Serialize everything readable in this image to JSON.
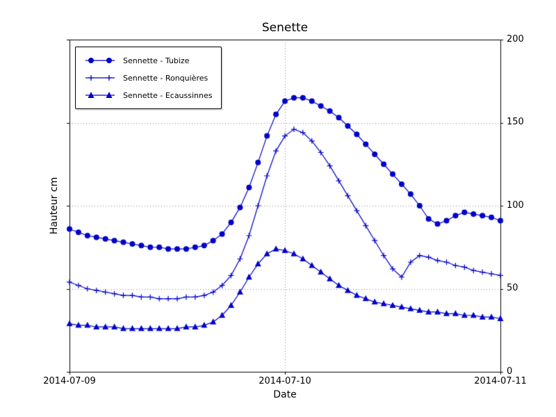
{
  "chart_data": {
    "type": "line",
    "title": "Senette",
    "xlabel": "Date",
    "ylabel": "Hauteur cm",
    "ylim": [
      0,
      200
    ],
    "ytick_labels": [
      "0",
      "50",
      "100",
      "150",
      "200"
    ],
    "xtick_labels": [
      "2014-07-09",
      "2014-07-10",
      "2014-07-11"
    ],
    "x_start": "2014-07-09 00:00",
    "x_step_hours": 1,
    "grid": "dotted",
    "grid_color": "#888888",
    "line_color": "#0000cc",
    "legend_position": "upper-left",
    "series": [
      {
        "name": "Sennette - Tubize",
        "marker": "circle",
        "values": [
          86,
          84,
          82,
          81,
          80,
          79,
          78,
          77,
          76,
          75,
          75,
          74,
          74,
          74,
          75,
          76,
          79,
          83,
          90,
          99,
          111,
          126,
          142,
          155,
          163,
          165,
          165,
          163,
          160,
          157,
          153,
          148,
          143,
          137,
          131,
          125,
          119,
          113,
          107,
          100,
          92,
          89,
          91,
          94,
          96,
          95,
          94,
          93,
          91
        ]
      },
      {
        "name": "Sennette - Ronquières",
        "marker": "plus",
        "values": [
          54,
          52,
          50,
          49,
          48,
          47,
          46,
          46,
          45,
          45,
          44,
          44,
          44,
          45,
          45,
          46,
          48,
          52,
          58,
          68,
          82,
          100,
          118,
          133,
          142,
          146,
          144,
          139,
          132,
          124,
          115,
          106,
          97,
          88,
          79,
          70,
          62,
          57,
          66,
          70,
          69,
          67,
          66,
          64,
          63,
          61,
          60,
          59,
          58
        ]
      },
      {
        "name": "Sennette - Ecaussinnes",
        "marker": "triangle-up",
        "values": [
          29,
          28,
          28,
          27,
          27,
          27,
          26,
          26,
          26,
          26,
          26,
          26,
          26,
          27,
          27,
          28,
          30,
          34,
          40,
          48,
          57,
          65,
          71,
          74,
          73,
          71,
          68,
          64,
          60,
          56,
          52,
          49,
          46,
          44,
          42,
          41,
          40,
          39,
          38,
          37,
          36,
          36,
          35,
          35,
          34,
          34,
          33,
          33,
          32
        ]
      }
    ]
  }
}
